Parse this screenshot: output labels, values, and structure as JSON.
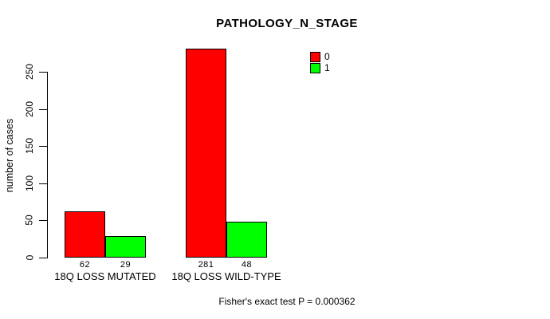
{
  "chart_data": {
    "type": "bar",
    "title": "PATHOLOGY_N_STAGE",
    "ylabel": "number of cases",
    "xlabel": "",
    "categories": [
      "18Q LOSS MUTATED",
      "18Q LOSS WILD-TYPE"
    ],
    "series": [
      {
        "name": "0",
        "color": "#ff0000",
        "values": [
          62,
          281
        ]
      },
      {
        "name": "1",
        "color": "#00ff00",
        "values": [
          29,
          48
        ]
      }
    ],
    "value_labels": [
      [
        "62",
        "29"
      ],
      [
        "281",
        "48"
      ]
    ],
    "ylim": [
      0,
      250
    ],
    "yticks": [
      0,
      50,
      100,
      150,
      200,
      250
    ],
    "grid": false,
    "legend_position": "top-right",
    "legend_entries": [
      {
        "label": "0",
        "color": "#ff0000"
      },
      {
        "label": "1",
        "color": "#00ff00"
      }
    ],
    "annotation": "Fisher's exact test P = 0.000362"
  },
  "colors": {
    "background": "#ffffff",
    "bar_border": "#000000",
    "axis": "#000000",
    "text": "#000000"
  }
}
